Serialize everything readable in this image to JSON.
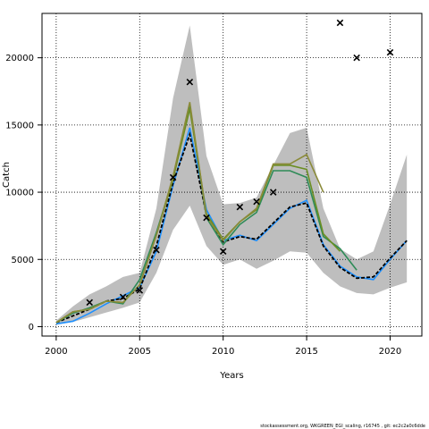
{
  "footer_text": "stockassessment.org, WKGREEN_EGI_scaling, r16745 , git: ec2c2a0c6dde",
  "chart_data": {
    "type": "line",
    "title": "",
    "xlabel": "Years",
    "ylabel": "Catch",
    "xlim": [
      1999.15,
      2021.9
    ],
    "ylim": [
      -700,
      23300
    ],
    "x_ticks": [
      2000,
      2005,
      2010,
      2015,
      2020
    ],
    "y_ticks": [
      0,
      5000,
      10000,
      15000,
      20000
    ],
    "grid": "dotted",
    "band": {
      "color": "#bebebe",
      "x": [
        2000,
        2001,
        2002,
        2003,
        2004,
        2005,
        2006,
        2007,
        2008,
        2009,
        2010,
        2011,
        2012,
        2013,
        2014,
        2015,
        2016,
        2017,
        2018,
        2019,
        2020,
        2021
      ],
      "lower": [
        150,
        350,
        700,
        1050,
        1400,
        1800,
        4000,
        7200,
        9000,
        6000,
        4600,
        5000,
        4300,
        4900,
        5600,
        5500,
        4000,
        3000,
        2500,
        2400,
        2900,
        3300
      ],
      "upper": [
        450,
        1500,
        2400,
        3000,
        3700,
        4000,
        8800,
        17000,
        22400,
        12700,
        9100,
        9200,
        9600,
        12000,
        14400,
        14800,
        8800,
        5800,
        5000,
        5600,
        9100,
        12800
      ]
    },
    "series": [
      {
        "color": "#1e90ff",
        "x": [
          2000,
          2001,
          2002,
          2003,
          2004,
          2005,
          2006,
          2007,
          2008,
          2009,
          2010,
          2011,
          2012,
          2013,
          2014,
          2015,
          2016,
          2017,
          2018,
          2019,
          2020,
          2021
        ],
        "values": [
          200,
          400,
          1000,
          1700,
          2300,
          2900,
          5600,
          10500,
          14800,
          8700,
          6400,
          6800,
          6400,
          7600,
          8800,
          9400,
          6100,
          4500,
          3700,
          3500,
          5000,
          6400
        ]
      },
      {
        "color": "#000000",
        "x": [
          2000,
          2001,
          2002,
          2003,
          2004,
          2005,
          2006,
          2007,
          2008,
          2009,
          2010,
          2011,
          2012,
          2013,
          2014,
          2015,
          2016,
          2017,
          2018,
          2019,
          2020,
          2021
        ],
        "values": [
          300,
          800,
          1300,
          1900,
          2100,
          2800,
          6000,
          10700,
          14300,
          8300,
          6300,
          6700,
          6500,
          7700,
          8900,
          9200,
          6000,
          4400,
          3600,
          3700,
          5100,
          6400
        ]
      },
      {
        "color": "#2e8b57",
        "x": [
          2000,
          2001,
          2002,
          2003,
          2004,
          2005,
          2006,
          2007,
          2008,
          2009,
          2010,
          2011,
          2012,
          2013,
          2014,
          2015,
          2016,
          2017,
          2018
        ],
        "values": [
          300,
          1000,
          1400,
          1900,
          1700,
          3500,
          7000,
          11000,
          16400,
          8100,
          6100,
          7600,
          8500,
          11600,
          11600,
          11100,
          6700,
          5800,
          4200
        ]
      },
      {
        "color": "#6b8e23",
        "x": [
          2000,
          2001,
          2002,
          2003,
          2004,
          2005,
          2006,
          2007,
          2008,
          2009,
          2010,
          2011,
          2012,
          2013,
          2014,
          2015,
          2016,
          2017
        ],
        "values": [
          300,
          1100,
          1300,
          1900,
          1800,
          3100,
          6800,
          11000,
          16200,
          8400,
          6500,
          7800,
          8700,
          12000,
          12000,
          11700,
          6900,
          5600
        ]
      },
      {
        "color": "#8b8b3a",
        "x": [
          2000,
          2001,
          2002,
          2003,
          2004,
          2005,
          2006,
          2007,
          2008,
          2009,
          2010,
          2011,
          2012,
          2013,
          2014,
          2015,
          2016
        ],
        "values": [
          300,
          1100,
          1300,
          1900,
          1800,
          3100,
          6800,
          11200,
          16700,
          8200,
          6400,
          7800,
          8800,
          12100,
          12100,
          12800,
          10000
        ]
      }
    ],
    "observations": {
      "marker": "x",
      "x": [
        2002,
        2004,
        2005,
        2006,
        2007,
        2008,
        2009,
        2010,
        2011,
        2012,
        2013,
        2017,
        2018,
        2020
      ],
      "y": [
        1800,
        2200,
        2700,
        5700,
        11100,
        18200,
        8100,
        5600,
        8900,
        9300,
        10000,
        22600,
        20000,
        20400
      ]
    }
  }
}
